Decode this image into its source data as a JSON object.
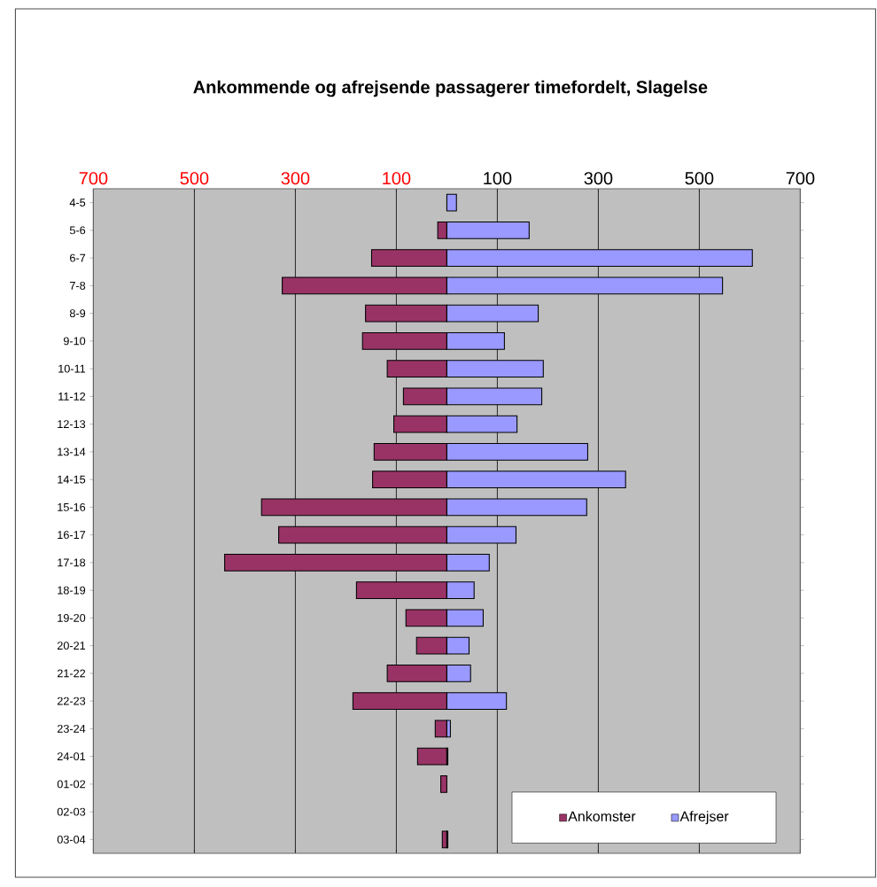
{
  "chart_data": {
    "type": "bar",
    "orientation": "horizontal",
    "title": "Ankommende og afrejsende passagerer timefordelt, Slagelse",
    "categories": [
      "4-5",
      "5-6",
      "6-7",
      "7-8",
      "8-9",
      "9-10",
      "10-11",
      "11-12",
      "12-13",
      "13-14",
      "14-15",
      "15-16",
      "16-17",
      "17-18",
      "18-19",
      "19-20",
      "20-21",
      "21-22",
      "22-23",
      "23-24",
      "24-01",
      "01-02",
      "02-03",
      "03-04"
    ],
    "series": [
      {
        "name": "Ankomster",
        "color": "#993366",
        "values": [
          null,
          -18,
          -149,
          -326,
          -161,
          -167,
          -118,
          -86,
          -105,
          -144,
          -147,
          -367,
          -333,
          -440,
          -179,
          -81,
          -60,
          -118,
          -186,
          -23,
          -58,
          -12,
          null,
          -9
        ]
      },
      {
        "name": "Afrejser",
        "color": "#9999ff",
        "values": [
          19,
          163,
          605,
          546,
          181,
          114,
          191,
          188,
          139,
          279,
          354,
          277,
          137,
          84,
          54,
          72,
          44,
          47,
          118,
          7,
          2,
          null,
          null,
          2
        ]
      }
    ],
    "xlim": [
      -700,
      700
    ],
    "xticks": [
      {
        "value": -700,
        "label": "700"
      },
      {
        "value": -500,
        "label": "500"
      },
      {
        "value": -300,
        "label": "300"
      },
      {
        "value": -100,
        "label": "100"
      },
      100,
      300,
      500,
      700
    ],
    "stacked": true,
    "grid": "x",
    "legend": "bottom right"
  }
}
